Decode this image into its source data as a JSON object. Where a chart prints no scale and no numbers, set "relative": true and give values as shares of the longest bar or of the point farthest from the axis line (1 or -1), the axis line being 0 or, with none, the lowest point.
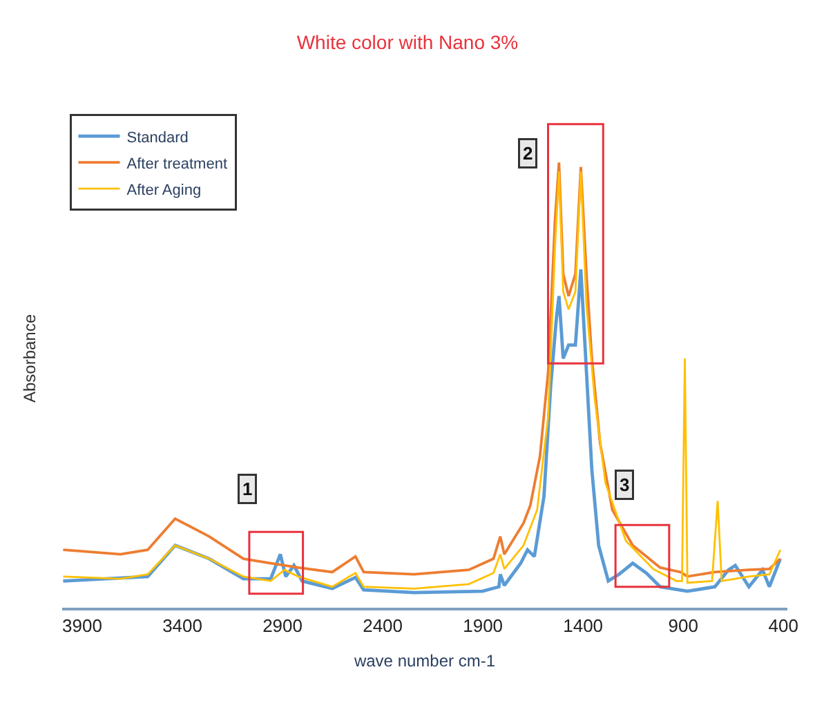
{
  "chart_data": {
    "type": "line",
    "title": "White color with Nano 3%",
    "xlabel": "wave number cm-1",
    "ylabel": "Absorbance",
    "relative": true,
    "xlim": [
      4000,
      380
    ],
    "xticks": [
      3900,
      3400,
      2900,
      2400,
      1900,
      1400,
      900,
      400
    ],
    "legend": "top left",
    "marker": "none",
    "line_style": "solid",
    "series": [
      {
        "name": "Standard",
        "color": "#5b9bd5",
        "x": [
          3995,
          3573,
          3436,
          3266,
          3095,
          2959,
          2911,
          2884,
          2843,
          2802,
          2652,
          2536,
          2495,
          2243,
          1902,
          1820,
          1813,
          1793,
          1711,
          1677,
          1643,
          1595,
          1561,
          1533,
          1520,
          1499,
          1472,
          1438,
          1411,
          1383,
          1356,
          1322,
          1274,
          1220,
          1152,
          1084,
          1015,
          879,
          742,
          674,
          640,
          572,
          504,
          470,
          415
        ],
        "values": [
          0.06,
          0.07,
          0.14,
          0.11,
          0.065,
          0.065,
          0.12,
          0.07,
          0.095,
          0.06,
          0.043,
          0.068,
          0.04,
          0.034,
          0.037,
          0.047,
          0.075,
          0.05,
          0.1,
          0.13,
          0.115,
          0.25,
          0.5,
          0.65,
          0.7,
          0.56,
          0.59,
          0.59,
          0.76,
          0.53,
          0.31,
          0.14,
          0.06,
          0.075,
          0.1,
          0.078,
          0.047,
          0.037,
          0.047,
          0.085,
          0.095,
          0.047,
          0.085,
          0.047,
          0.11
        ]
      },
      {
        "name": "After treatment",
        "color": "#ed7d31",
        "x": [
          3995,
          3709,
          3573,
          3436,
          3266,
          3095,
          2959,
          2822,
          2652,
          2536,
          2495,
          2243,
          1970,
          1847,
          1813,
          1793,
          1697,
          1663,
          1615,
          1574,
          1540,
          1520,
          1499,
          1472,
          1438,
          1411,
          1383,
          1356,
          1315,
          1254,
          1152,
          1015,
          913,
          879,
          742,
          572,
          470,
          415
        ],
        "values": [
          0.13,
          0.12,
          0.13,
          0.2,
          0.16,
          0.11,
          0.1,
          0.09,
          0.08,
          0.115,
          0.08,
          0.075,
          0.085,
          0.11,
          0.16,
          0.12,
          0.19,
          0.23,
          0.34,
          0.53,
          0.87,
          1.0,
          0.75,
          0.7,
          0.75,
          0.99,
          0.75,
          0.56,
          0.37,
          0.22,
          0.14,
          0.09,
          0.08,
          0.07,
          0.08,
          0.085,
          0.087,
          0.11
        ]
      },
      {
        "name": "After Aging",
        "color": "#ffc000",
        "x": [
          3995,
          3709,
          3573,
          3436,
          3266,
          3095,
          2959,
          2890,
          2822,
          2652,
          2536,
          2495,
          2243,
          1970,
          1847,
          1813,
          1793,
          1697,
          1629,
          1574,
          1540,
          1520,
          1499,
          1472,
          1438,
          1411,
          1383,
          1342,
          1288,
          1186,
          1050,
          934,
          906,
          892,
          879,
          756,
          728,
          708,
          572,
          470,
          415
        ],
        "values": [
          0.07,
          0.065,
          0.075,
          0.14,
          0.11,
          0.07,
          0.06,
          0.085,
          0.07,
          0.047,
          0.078,
          0.047,
          0.043,
          0.053,
          0.078,
          0.12,
          0.087,
          0.14,
          0.22,
          0.43,
          0.81,
          0.98,
          0.71,
          0.67,
          0.71,
          0.98,
          0.68,
          0.47,
          0.28,
          0.15,
          0.087,
          0.06,
          0.06,
          0.56,
          0.056,
          0.06,
          0.24,
          0.06,
          0.07,
          0.075,
          0.13
        ]
      }
    ],
    "annotations": [
      "1",
      "2",
      "3"
    ]
  }
}
